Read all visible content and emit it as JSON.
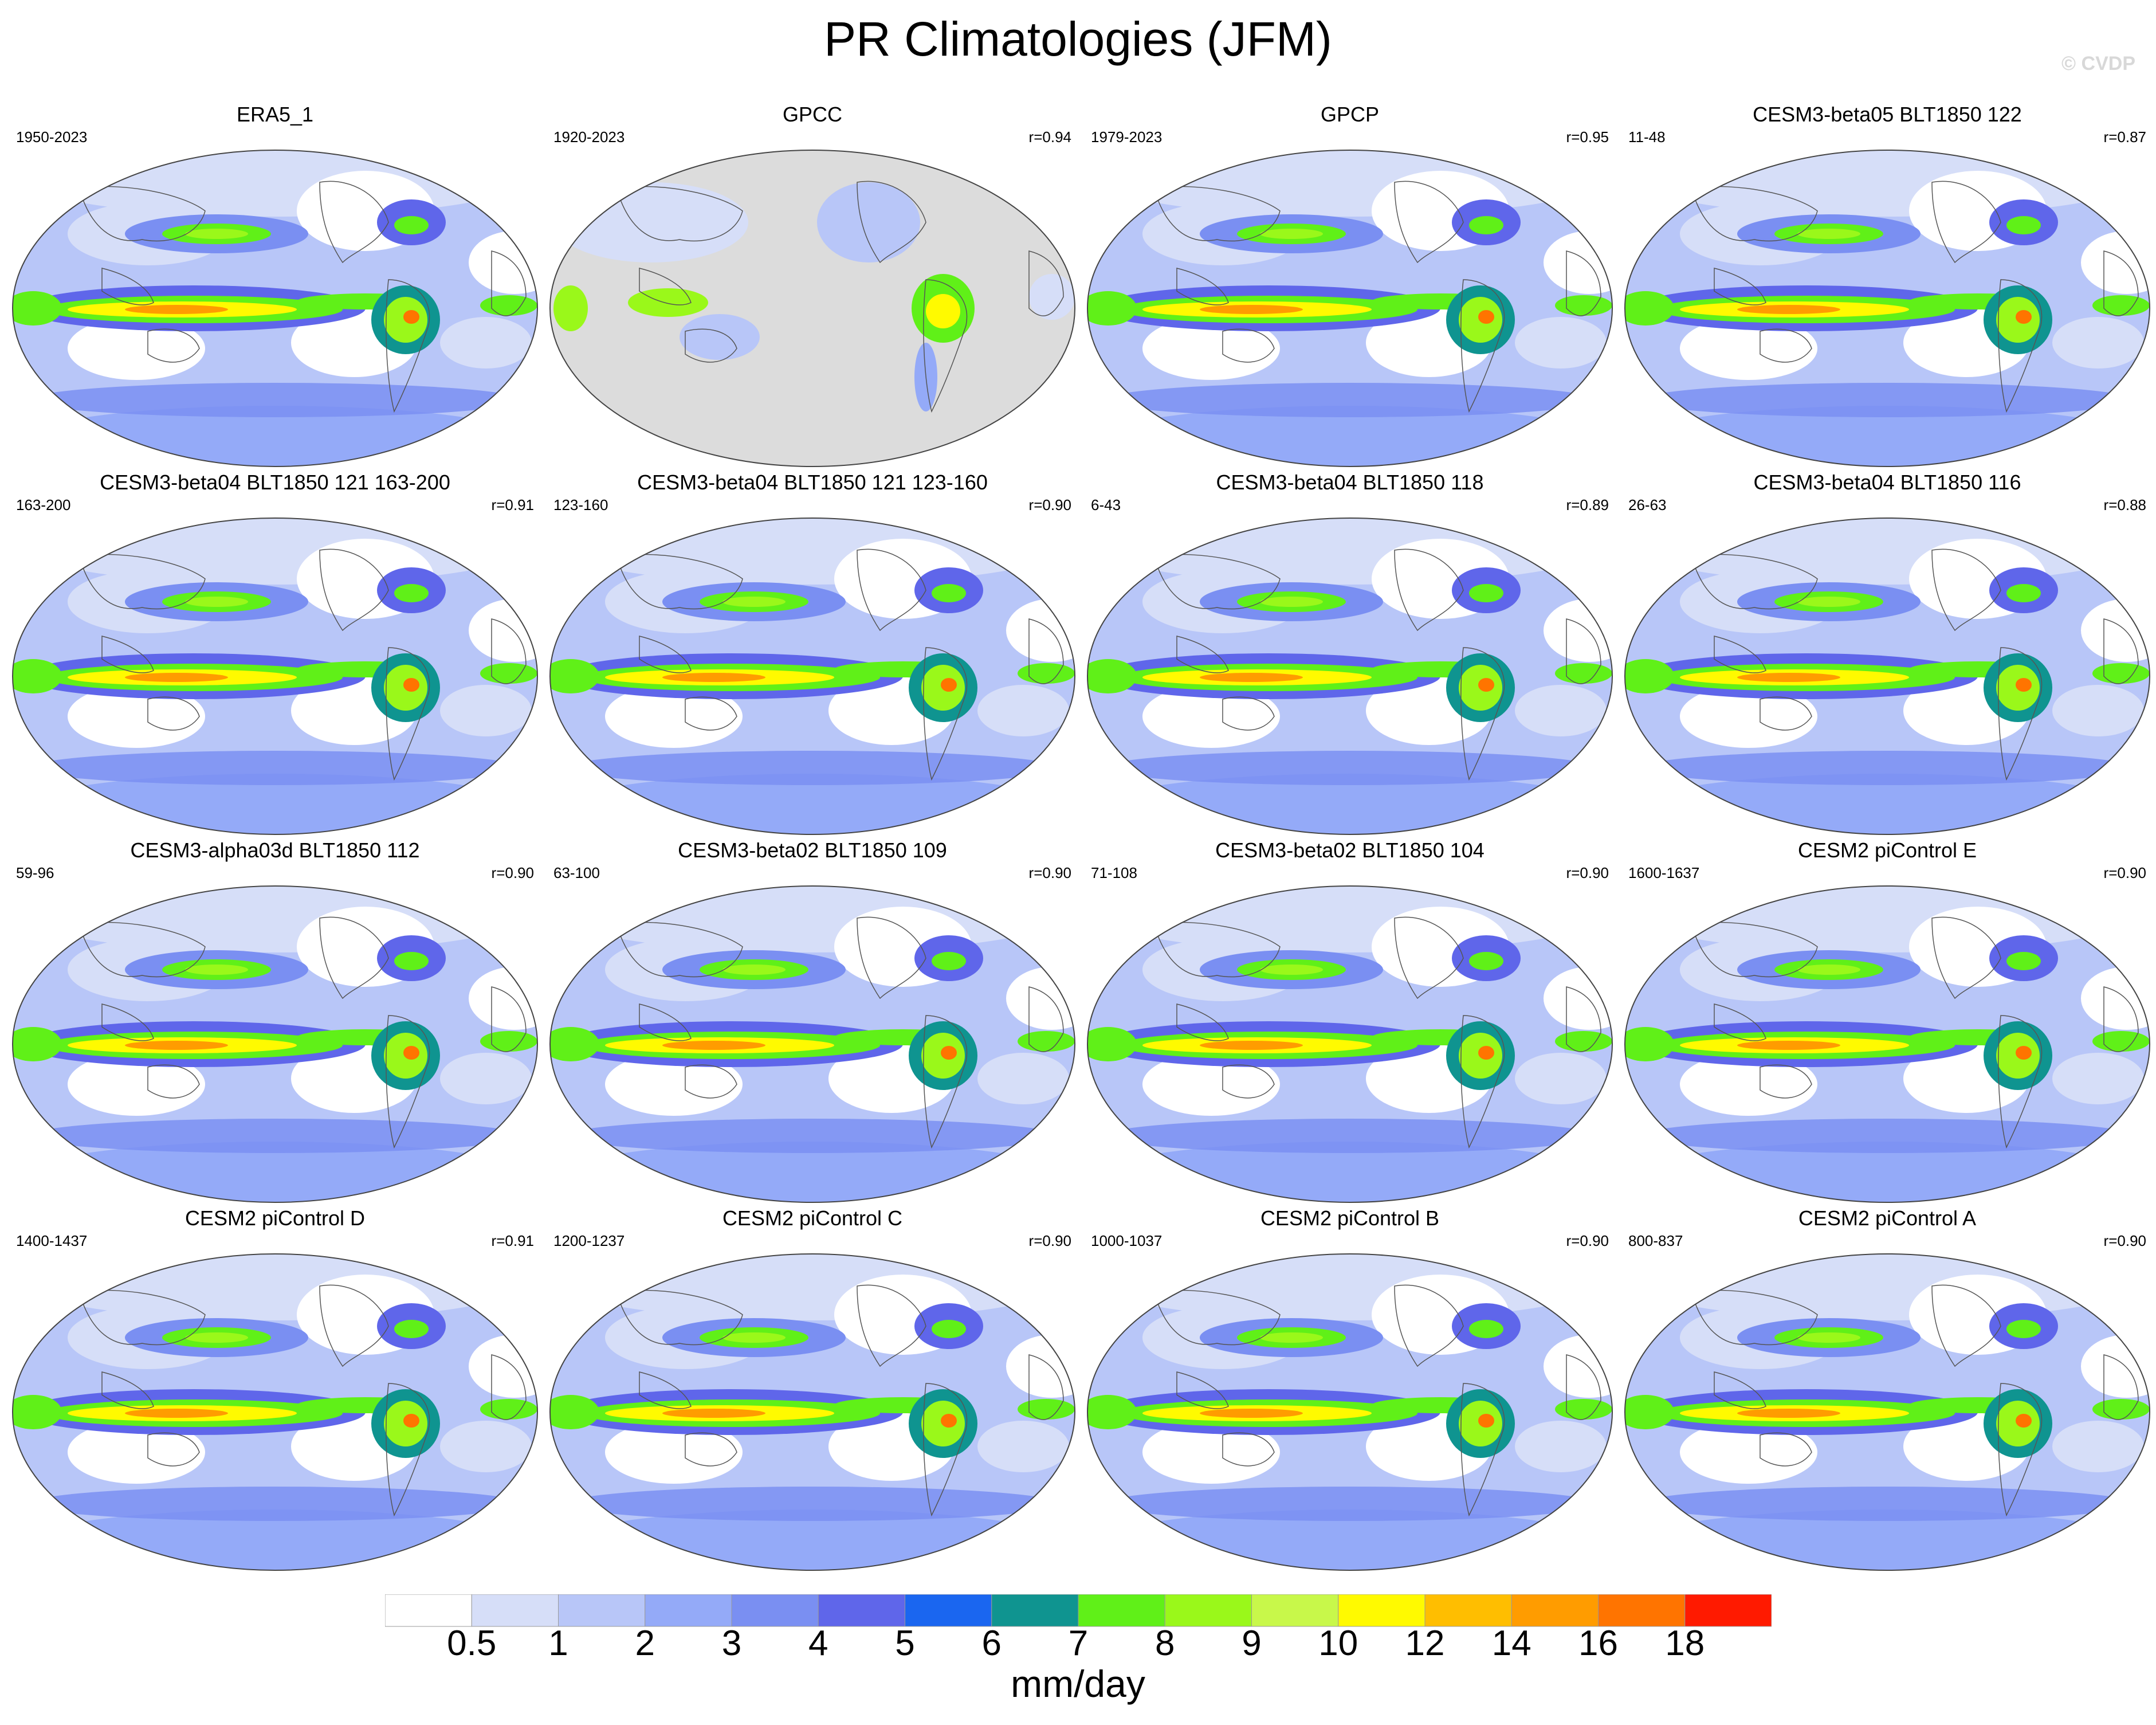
{
  "title": "PR Climatologies (JFM)",
  "watermark": "© CVDP",
  "colorbar": {
    "label": "mm/day",
    "ticks": [
      "0.5",
      "1",
      "2",
      "3",
      "4",
      "5",
      "6",
      "7",
      "8",
      "9",
      "10",
      "12",
      "14",
      "16",
      "18"
    ],
    "colors": [
      "#ffffff",
      "#d6def8",
      "#b8c6f8",
      "#94aaf8",
      "#7a8ff2",
      "#5f66ea",
      "#1a66f0",
      "#0f9490",
      "#60f018",
      "#9af81a",
      "#c8f84a",
      "#fffa00",
      "#ffbe00",
      "#ff9c00",
      "#ff7400",
      "#ff1a00"
    ]
  },
  "panels": [
    {
      "title": "ERA5_1",
      "years": "1950-2023",
      "corr": "",
      "type": "model"
    },
    {
      "title": "GPCC",
      "years": "1920-2023",
      "corr": "r=0.94",
      "type": "land"
    },
    {
      "title": "GPCP",
      "years": "1979-2023",
      "corr": "r=0.95",
      "type": "model"
    },
    {
      "title": "CESM3-beta05 BLT1850 122",
      "years": "11-48",
      "corr": "r=0.87",
      "type": "model"
    },
    {
      "title": "CESM3-beta04 BLT1850 121 163-200",
      "years": "163-200",
      "corr": "r=0.91",
      "type": "model"
    },
    {
      "title": "CESM3-beta04 BLT1850 121 123-160",
      "years": "123-160",
      "corr": "r=0.90",
      "type": "model"
    },
    {
      "title": "CESM3-beta04 BLT1850 118",
      "years": "6-43",
      "corr": "r=0.89",
      "type": "model"
    },
    {
      "title": "CESM3-beta04 BLT1850 116",
      "years": "26-63",
      "corr": "r=0.88",
      "type": "model"
    },
    {
      "title": "CESM3-alpha03d BLT1850 112",
      "years": "59-96",
      "corr": "r=0.90",
      "type": "model"
    },
    {
      "title": "CESM3-beta02 BLT1850 109",
      "years": "63-100",
      "corr": "r=0.90",
      "type": "model"
    },
    {
      "title": "CESM3-beta02 BLT1850 104",
      "years": "71-108",
      "corr": "r=0.90",
      "type": "model"
    },
    {
      "title": "CESM2 piControl E",
      "years": "1600-1637",
      "corr": "r=0.90",
      "type": "model"
    },
    {
      "title": "CESM2 piControl D",
      "years": "1400-1437",
      "corr": "r=0.91",
      "type": "model"
    },
    {
      "title": "CESM2 piControl C",
      "years": "1200-1237",
      "corr": "r=0.90",
      "type": "model"
    },
    {
      "title": "CESM2 piControl B",
      "years": "1000-1037",
      "corr": "r=0.90",
      "type": "model"
    },
    {
      "title": "CESM2 piControl A",
      "years": "800-837",
      "corr": "r=0.90",
      "type": "model"
    }
  ]
}
